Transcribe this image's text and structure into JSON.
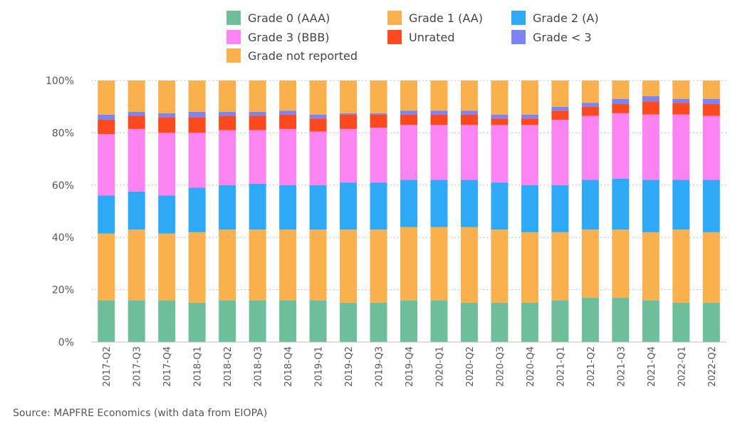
{
  "colors": {
    "Grade 0 (AAA)": "#6dbf9c",
    "Grade 1 (AA)": "#fbb04e",
    "Grade 2 (A)": "#2ea9f5",
    "Grade 3 (BBB)": "#fb84f2",
    "Unrated": "#fb4a1d",
    "Grade < 3": "#7c83f3",
    "Grade not reported": "#fbb04e"
  },
  "source": "Source: MAPFRE Economics (with data from EIOPA)",
  "chart_data": {
    "type": "bar",
    "stacked": true,
    "categories": [
      "2017-Q2",
      "2017-Q3",
      "2017-Q4",
      "2018-Q1",
      "2018-Q2",
      "2018-Q3",
      "2018-Q4",
      "2019-Q1",
      "2019-Q2",
      "2019-Q3",
      "2019-Q4",
      "2020-Q1",
      "2020-Q2",
      "2020-Q3",
      "2020-Q4",
      "2021-Q1",
      "2021-Q2",
      "2021-Q3",
      "2021-Q4",
      "2022-Q1",
      "2022-Q2"
    ],
    "ylim": [
      0,
      100
    ],
    "yticks": [
      "0%",
      "20%",
      "40%",
      "60%",
      "80%",
      "100%"
    ],
    "grid": true,
    "legend_position": "top",
    "series": [
      {
        "name": "Grade 0 (AAA)",
        "values": [
          16,
          16,
          16,
          15,
          16,
          16,
          16,
          16,
          15,
          15,
          16,
          16,
          15,
          15,
          15,
          16,
          17,
          17,
          16,
          15,
          15
        ]
      },
      {
        "name": "Grade 1 (AA)",
        "values": [
          25.5,
          27,
          25.5,
          27,
          27,
          27,
          27,
          27,
          28,
          28,
          28,
          28,
          29,
          28,
          27,
          26,
          26,
          26,
          26,
          28,
          27
        ]
      },
      {
        "name": "Grade 2 (A)",
        "values": [
          14.5,
          14.5,
          14.5,
          17,
          17,
          17.5,
          17,
          17,
          18,
          18,
          18,
          18,
          18,
          18,
          18,
          18,
          19,
          19.5,
          20,
          19,
          20
        ]
      },
      {
        "name": "Grade 3 (BBB)",
        "values": [
          23.5,
          24,
          24,
          21,
          21,
          20.5,
          21.5,
          20.5,
          20.5,
          21,
          21,
          21,
          21,
          22,
          23,
          25,
          24.5,
          25,
          25,
          25,
          24.5
        ]
      },
      {
        "name": "Unrated",
        "values": [
          5.5,
          5,
          6,
          6,
          5.5,
          5.5,
          5.5,
          5,
          5.5,
          5,
          4,
          4,
          4,
          2.5,
          2.5,
          3.5,
          3.5,
          3.5,
          5,
          4.5,
          4.5
        ]
      },
      {
        "name": "Grade < 3",
        "values": [
          2,
          1.5,
          1.5,
          2,
          1.5,
          1.5,
          1.5,
          1.5,
          0.5,
          0.5,
          1.5,
          1.5,
          1.5,
          1.5,
          1.5,
          1.5,
          1.5,
          2,
          2,
          1.5,
          2
        ]
      },
      {
        "name": "Grade not reported",
        "values": [
          13,
          12,
          12.5,
          12,
          12,
          12,
          11.5,
          13,
          12.5,
          12.5,
          11.5,
          11.5,
          11.5,
          13,
          13,
          10,
          8.5,
          7,
          6,
          7,
          7
        ]
      }
    ]
  }
}
